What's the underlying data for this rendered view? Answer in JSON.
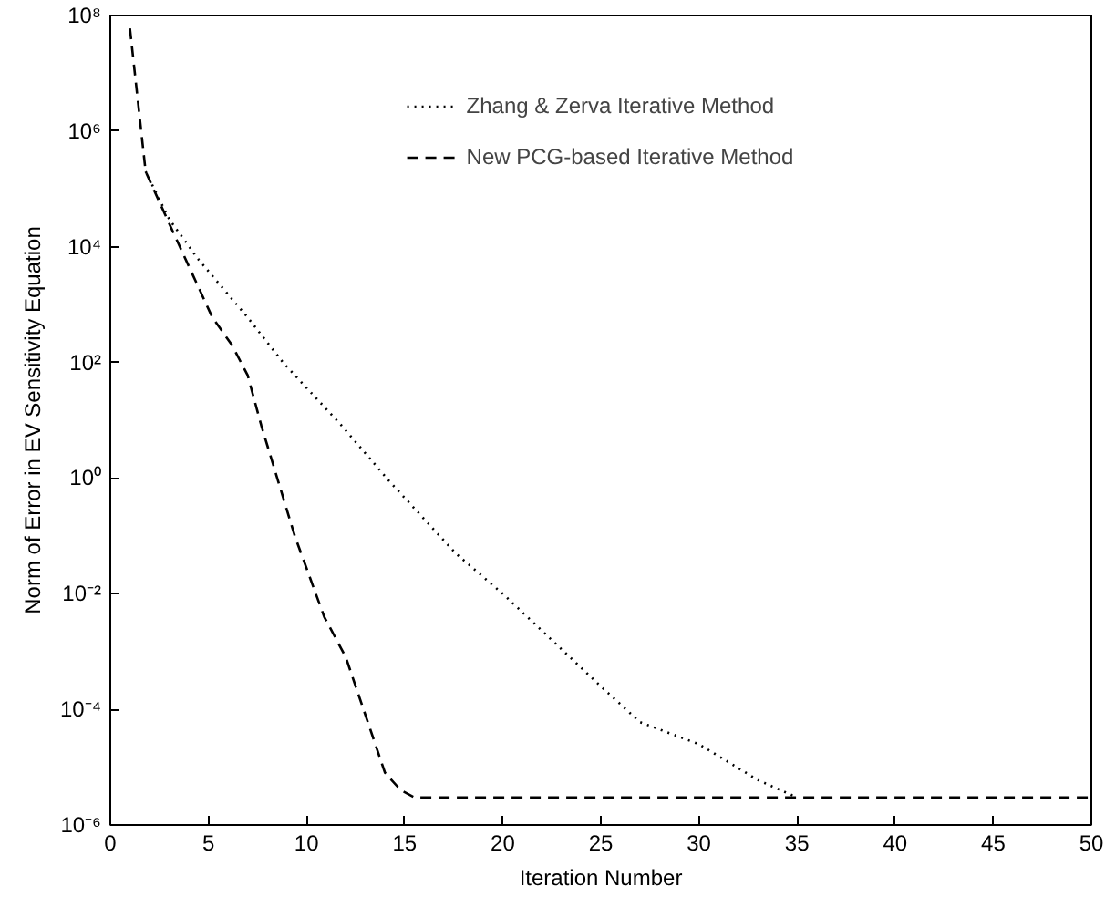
{
  "chart_data": {
    "type": "line",
    "xlabel": "Iteration Number",
    "ylabel": "Norm of Error in EV Sensitivity Equation",
    "xlim": [
      0,
      50
    ],
    "xticks": [
      0,
      5,
      10,
      15,
      20,
      25,
      30,
      35,
      40,
      45,
      50
    ],
    "ylim": [
      1e-06,
      100000000.0
    ],
    "yticks": [
      {
        "value": 1e-06,
        "label": "10⁻⁶"
      },
      {
        "value": 0.0001,
        "label": "10⁻⁴"
      },
      {
        "value": 0.01,
        "label": "10⁻²"
      },
      {
        "value": 1,
        "label": "10⁰"
      },
      {
        "value": 100,
        "label": "10²"
      },
      {
        "value": 10000,
        "label": "10⁴"
      },
      {
        "value": 1000000,
        "label": "10⁶"
      },
      {
        "value": 100000000,
        "label": "10⁸"
      }
    ],
    "log": "y",
    "grid": false,
    "legend": "top",
    "marker": "none",
    "series": [
      {
        "name": "Zhang & Zerva Iterative Method",
        "color": "#000000",
        "line_style": "dotted",
        "x": [
          1.8,
          3,
          4.5,
          7,
          8.8,
          11.8,
          14.2,
          17.6,
          20,
          25,
          27,
          30,
          33,
          35
        ],
        "values": [
          200000.0,
          30000.0,
          6000.0,
          600.0,
          100.0,
          8,
          0.9,
          0.05,
          0.01,
          0.00025,
          6e-05,
          2.5e-05,
          6e-06,
          3e-06
        ]
      },
      {
        "name": "New PCG-based Iterative Method",
        "color": "#000000",
        "line_style": "dashed",
        "x": [
          1,
          1.8,
          2.9,
          5.2,
          6.2,
          7,
          7.7,
          9.4,
          10.9,
          12,
          13,
          14,
          14.8,
          15.5,
          50
        ],
        "values": [
          60000000.0,
          200000.0,
          30000.0,
          600.0,
          200.0,
          60.0,
          8,
          0.1,
          0.004,
          0.0008,
          8e-05,
          8e-06,
          4e-06,
          3e-06,
          3e-06
        ]
      }
    ]
  }
}
